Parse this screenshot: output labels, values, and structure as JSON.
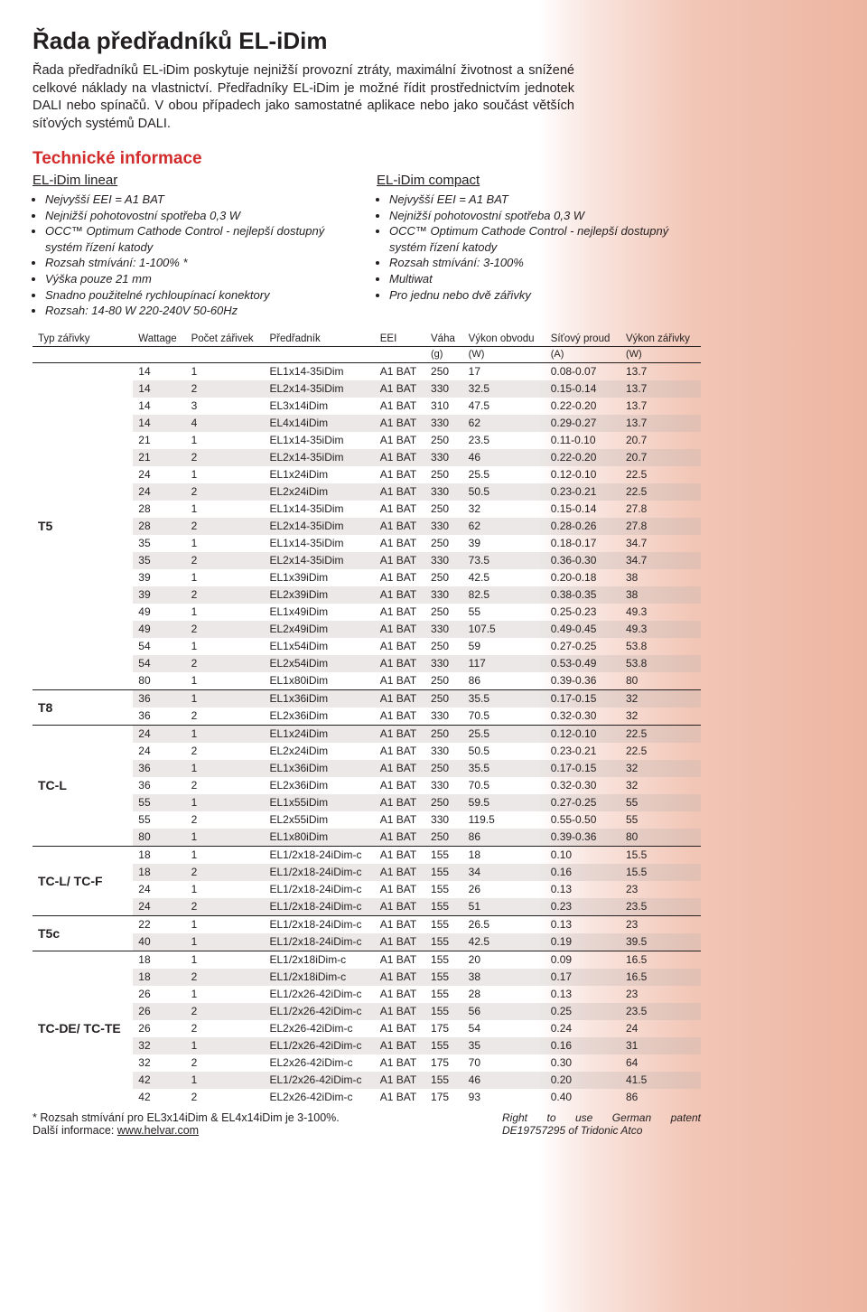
{
  "title": "Řada předřadníků EL-iDim",
  "intro": "Řada předřadníků EL-iDim poskytuje nejnižší provozní ztráty, maximální životnost a snížené celkové náklady na vlastnictví. Předřadníky EL-iDim je možné řídit prostřednictvím jednotek DALI nebo spínačů. V obou případech jako samostatné aplikace nebo jako součást větších síťových systémů DALI.",
  "tech_heading": "Technické informace",
  "linear": {
    "heading": "EL-iDim linear",
    "items": [
      "Nejvyšší EEI = A1 BAT",
      "Nejnižší pohotovostní spotřeba 0,3 W",
      "OCC™ Optimum Cathode Control - nejlepší dostupný systém řízení katody",
      "Rozsah stmívání: 1-100% *",
      "Výška pouze 21 mm",
      "Snadno použitelné rychloupínací konektory",
      "Rozsah: 14-80 W 220-240V 50-60Hz"
    ]
  },
  "compact": {
    "heading": "EL-iDim compact",
    "items": [
      "Nejvyšší EEI = A1 BAT",
      "Nejnižší pohotovostní spotřeba 0,3 W",
      "OCC™ Optimum Cathode Control - nejlepší dostupný systém řízení katody",
      "Rozsah stmívání: 3-100%",
      "Multiwat",
      "Pro jednu nebo dvě zářivky"
    ]
  },
  "table": {
    "headers": {
      "type": "Typ zářivky",
      "wattage": "Wattage",
      "count": "Počet zářivek",
      "ballast": "Předřadník",
      "eei": "EEI",
      "weight": "Váha",
      "circuit": "Výkon obvodu",
      "mains": "Síťový proud",
      "lamp": "Výkon zářivky"
    },
    "units": {
      "weight": "(g)",
      "circuit": "(W)",
      "mains": "(A)",
      "lamp": "(W)"
    },
    "groups": [
      {
        "type": "T5",
        "rows": [
          {
            "w": "14",
            "n": "1",
            "b": "EL1x14-35iDim",
            "e": "A1 BAT",
            "g": "250",
            "cw": "17",
            "a": "0.08-0.07",
            "lw": "13.7",
            "s": false
          },
          {
            "w": "14",
            "n": "2",
            "b": "EL2x14-35iDim",
            "e": "A1 BAT",
            "g": "330",
            "cw": "32.5",
            "a": "0.15-0.14",
            "lw": "13.7",
            "s": true
          },
          {
            "w": "14",
            "n": "3",
            "b": "EL3x14iDim",
            "e": "A1 BAT",
            "g": "310",
            "cw": "47.5",
            "a": "0.22-0.20",
            "lw": "13.7",
            "s": false
          },
          {
            "w": "14",
            "n": "4",
            "b": "EL4x14iDim",
            "e": "A1 BAT",
            "g": "330",
            "cw": "62",
            "a": "0.29-0.27",
            "lw": "13.7",
            "s": true
          },
          {
            "w": "21",
            "n": "1",
            "b": "EL1x14-35iDim",
            "e": "A1 BAT",
            "g": "250",
            "cw": "23.5",
            "a": "0.11-0.10",
            "lw": "20.7",
            "s": false
          },
          {
            "w": "21",
            "n": "2",
            "b": "EL2x14-35iDim",
            "e": "A1 BAT",
            "g": "330",
            "cw": "46",
            "a": "0.22-0.20",
            "lw": "20.7",
            "s": true
          },
          {
            "w": "24",
            "n": "1",
            "b": "EL1x24iDim",
            "e": "A1 BAT",
            "g": "250",
            "cw": "25.5",
            "a": "0.12-0.10",
            "lw": "22.5",
            "s": false
          },
          {
            "w": "24",
            "n": "2",
            "b": "EL2x24iDim",
            "e": "A1 BAT",
            "g": "330",
            "cw": "50.5",
            "a": "0.23-0.21",
            "lw": "22.5",
            "s": true
          },
          {
            "w": "28",
            "n": "1",
            "b": "EL1x14-35iDim",
            "e": "A1 BAT",
            "g": "250",
            "cw": "32",
            "a": "0.15-0.14",
            "lw": "27.8",
            "s": false
          },
          {
            "w": "28",
            "n": "2",
            "b": "EL2x14-35iDim",
            "e": "A1 BAT",
            "g": "330",
            "cw": "62",
            "a": "0.28-0.26",
            "lw": "27.8",
            "s": true
          },
          {
            "w": "35",
            "n": "1",
            "b": "EL1x14-35iDim",
            "e": "A1 BAT",
            "g": "250",
            "cw": "39",
            "a": "0.18-0.17",
            "lw": "34.7",
            "s": false
          },
          {
            "w": "35",
            "n": "2",
            "b": "EL2x14-35iDim",
            "e": "A1 BAT",
            "g": "330",
            "cw": "73.5",
            "a": "0.36-0.30",
            "lw": "34.7",
            "s": true
          },
          {
            "w": "39",
            "n": "1",
            "b": "EL1x39iDim",
            "e": "A1 BAT",
            "g": "250",
            "cw": "42.5",
            "a": "0.20-0.18",
            "lw": "38",
            "s": false
          },
          {
            "w": "39",
            "n": "2",
            "b": "EL2x39iDim",
            "e": "A1 BAT",
            "g": "330",
            "cw": "82.5",
            "a": "0.38-0.35",
            "lw": "38",
            "s": true
          },
          {
            "w": "49",
            "n": "1",
            "b": "EL1x49iDim",
            "e": "A1 BAT",
            "g": "250",
            "cw": "55",
            "a": "0.25-0.23",
            "lw": "49.3",
            "s": false
          },
          {
            "w": "49",
            "n": "2",
            "b": "EL2x49iDim",
            "e": "A1 BAT",
            "g": "330",
            "cw": "107.5",
            "a": "0.49-0.45",
            "lw": "49.3",
            "s": true
          },
          {
            "w": "54",
            "n": "1",
            "b": "EL1x54iDim",
            "e": "A1 BAT",
            "g": "250",
            "cw": "59",
            "a": "0.27-0.25",
            "lw": "53.8",
            "s": false
          },
          {
            "w": "54",
            "n": "2",
            "b": "EL2x54iDim",
            "e": "A1 BAT",
            "g": "330",
            "cw": "117",
            "a": "0.53-0.49",
            "lw": "53.8",
            "s": true
          },
          {
            "w": "80",
            "n": "1",
            "b": "EL1x80iDim",
            "e": "A1 BAT",
            "g": "250",
            "cw": "86",
            "a": "0.39-0.36",
            "lw": "80",
            "s": false
          }
        ]
      },
      {
        "type": "T8",
        "rows": [
          {
            "w": "36",
            "n": "1",
            "b": "EL1x36iDim",
            "e": "A1 BAT",
            "g": "250",
            "cw": "35.5",
            "a": "0.17-0.15",
            "lw": "32",
            "s": true
          },
          {
            "w": "36",
            "n": "2",
            "b": "EL2x36iDim",
            "e": "A1 BAT",
            "g": "330",
            "cw": "70.5",
            "a": "0.32-0.30",
            "lw": "32",
            "s": false
          }
        ]
      },
      {
        "type": "TC-L",
        "rows": [
          {
            "w": "24",
            "n": "1",
            "b": "EL1x24iDim",
            "e": "A1 BAT",
            "g": "250",
            "cw": "25.5",
            "a": "0.12-0.10",
            "lw": "22.5",
            "s": true
          },
          {
            "w": "24",
            "n": "2",
            "b": "EL2x24iDim",
            "e": "A1 BAT",
            "g": "330",
            "cw": "50.5",
            "a": "0.23-0.21",
            "lw": "22.5",
            "s": false
          },
          {
            "w": "36",
            "n": "1",
            "b": "EL1x36iDim",
            "e": "A1 BAT",
            "g": "250",
            "cw": "35.5",
            "a": "0.17-0.15",
            "lw": "32",
            "s": true
          },
          {
            "w": "36",
            "n": "2",
            "b": "EL2x36iDim",
            "e": "A1 BAT",
            "g": "330",
            "cw": "70.5",
            "a": "0.32-0.30",
            "lw": "32",
            "s": false
          },
          {
            "w": "55",
            "n": "1",
            "b": "EL1x55iDim",
            "e": "A1 BAT",
            "g": "250",
            "cw": "59.5",
            "a": "0.27-0.25",
            "lw": "55",
            "s": true
          },
          {
            "w": "55",
            "n": "2",
            "b": "EL2x55iDim",
            "e": "A1 BAT",
            "g": "330",
            "cw": "119.5",
            "a": "0.55-0.50",
            "lw": "55",
            "s": false
          },
          {
            "w": "80",
            "n": "1",
            "b": "EL1x80iDim",
            "e": "A1 BAT",
            "g": "250",
            "cw": "86",
            "a": "0.39-0.36",
            "lw": "80",
            "s": true
          }
        ]
      },
      {
        "type": "TC-L/ TC-F",
        "rows": [
          {
            "w": "18",
            "n": "1",
            "b": "EL1/2x18-24iDim-c",
            "e": "A1 BAT",
            "g": "155",
            "cw": "18",
            "a": "0.10",
            "lw": "15.5",
            "s": false
          },
          {
            "w": "18",
            "n": "2",
            "b": "EL1/2x18-24iDim-c",
            "e": "A1 BAT",
            "g": "155",
            "cw": "34",
            "a": "0.16",
            "lw": "15.5",
            "s": true
          },
          {
            "w": "24",
            "n": "1",
            "b": "EL1/2x18-24iDim-c",
            "e": "A1 BAT",
            "g": "155",
            "cw": "26",
            "a": "0.13",
            "lw": "23",
            "s": false
          },
          {
            "w": "24",
            "n": "2",
            "b": "EL1/2x18-24iDim-c",
            "e": "A1 BAT",
            "g": "155",
            "cw": "51",
            "a": "0.23",
            "lw": "23.5",
            "s": true
          }
        ]
      },
      {
        "type": "T5c",
        "rows": [
          {
            "w": "22",
            "n": "1",
            "b": "EL1/2x18-24iDim-c",
            "e": "A1 BAT",
            "g": "155",
            "cw": "26.5",
            "a": "0.13",
            "lw": "23",
            "s": false
          },
          {
            "w": "40",
            "n": "1",
            "b": "EL1/2x18-24iDim-c",
            "e": "A1 BAT",
            "g": "155",
            "cw": "42.5",
            "a": "0.19",
            "lw": "39.5",
            "s": true
          }
        ]
      },
      {
        "type": "TC-DE/ TC-TE",
        "rows": [
          {
            "w": "18",
            "n": "1",
            "b": "EL1/2x18iDim-c",
            "e": "A1 BAT",
            "g": "155",
            "cw": "20",
            "a": "0.09",
            "lw": "16.5",
            "s": false
          },
          {
            "w": "18",
            "n": "2",
            "b": "EL1/2x18iDim-c",
            "e": "A1 BAT",
            "g": "155",
            "cw": "38",
            "a": "0.17",
            "lw": "16.5",
            "s": true
          },
          {
            "w": "26",
            "n": "1",
            "b": "EL1/2x26-42iDim-c",
            "e": "A1 BAT",
            "g": "155",
            "cw": "28",
            "a": "0.13",
            "lw": "23",
            "s": false
          },
          {
            "w": "26",
            "n": "2",
            "b": "EL1/2x26-42iDim-c",
            "e": "A1 BAT",
            "g": "155",
            "cw": "56",
            "a": "0.25",
            "lw": "23.5",
            "s": true
          },
          {
            "w": "26",
            "n": "2",
            "b": "EL2x26-42iDim-c",
            "e": "A1 BAT",
            "g": "175",
            "cw": "54",
            "a": "0.24",
            "lw": "24",
            "s": false
          },
          {
            "w": "32",
            "n": "1",
            "b": "EL1/2x26-42iDim-c",
            "e": "A1 BAT",
            "g": "155",
            "cw": "35",
            "a": "0.16",
            "lw": "31",
            "s": true
          },
          {
            "w": "32",
            "n": "2",
            "b": "EL2x26-42iDim-c",
            "e": "A1 BAT",
            "g": "175",
            "cw": "70",
            "a": "0.30",
            "lw": "64",
            "s": false
          },
          {
            "w": "42",
            "n": "1",
            "b": "EL1/2x26-42iDim-c",
            "e": "A1 BAT",
            "g": "155",
            "cw": "46",
            "a": "0.20",
            "lw": "41.5",
            "s": true
          },
          {
            "w": "42",
            "n": "2",
            "b": "EL2x26-42iDim-c",
            "e": "A1 BAT",
            "g": "175",
            "cw": "93",
            "a": "0.40",
            "lw": "86",
            "s": false
          }
        ]
      }
    ]
  },
  "footnote1": "* Rozsah stmívání pro EL3x14iDim & EL4x14iDim je 3-100%.",
  "footnote2": "Další informace: ",
  "footnote_link": "www.helvar.com",
  "patent": "Right to use German patent DE19757295 of Tridonic Atco"
}
